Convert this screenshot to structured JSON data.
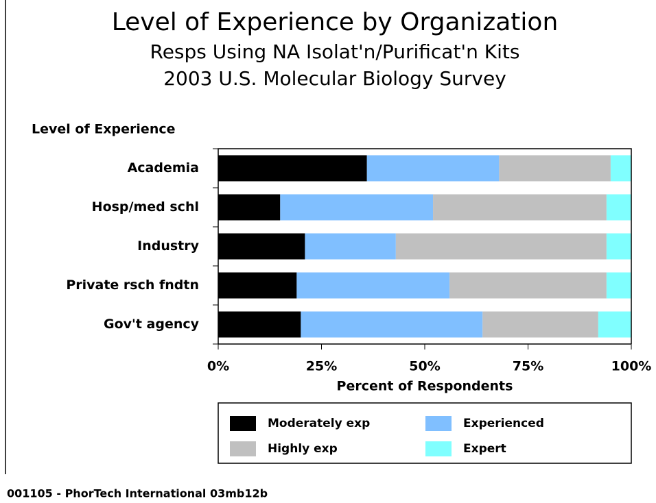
{
  "chart_data": {
    "type": "stacked-barh",
    "title": "Level of Experience by Organization",
    "subtitle": [
      "Resps Using NA Isolat'n/Purificat'n Kits",
      "2003 U.S. Molecular Biology Survey"
    ],
    "y_label": "Level of Experience",
    "x_label": "Percent of Respondents",
    "categories": [
      "Academia",
      "Hosp/med schl",
      "Industry",
      "Private rsch fndtn",
      "Gov't agency"
    ],
    "series": [
      {
        "name": "Moderately exp",
        "color": "#000000",
        "values": [
          36,
          15,
          21,
          19,
          20
        ]
      },
      {
        "name": "Experienced",
        "color": "#80bfff",
        "values": [
          32,
          37,
          22,
          37,
          44
        ]
      },
      {
        "name": "Highly exp",
        "color": "#c0c0c0",
        "values": [
          27,
          42,
          51,
          38,
          28
        ]
      },
      {
        "name": "Expert",
        "color": "#80ffff",
        "values": [
          5,
          6,
          6,
          6,
          8
        ]
      }
    ],
    "xlim": [
      0,
      100
    ],
    "xticks": [
      {
        "value": 0,
        "label": "0%"
      },
      {
        "value": 25,
        "label": "25%"
      },
      {
        "value": 50,
        "label": "50%"
      },
      {
        "value": 75,
        "label": "75%"
      },
      {
        "value": 100,
        "label": "100%"
      }
    ],
    "footer": "001105 - PhorTech International 03mb12b"
  }
}
